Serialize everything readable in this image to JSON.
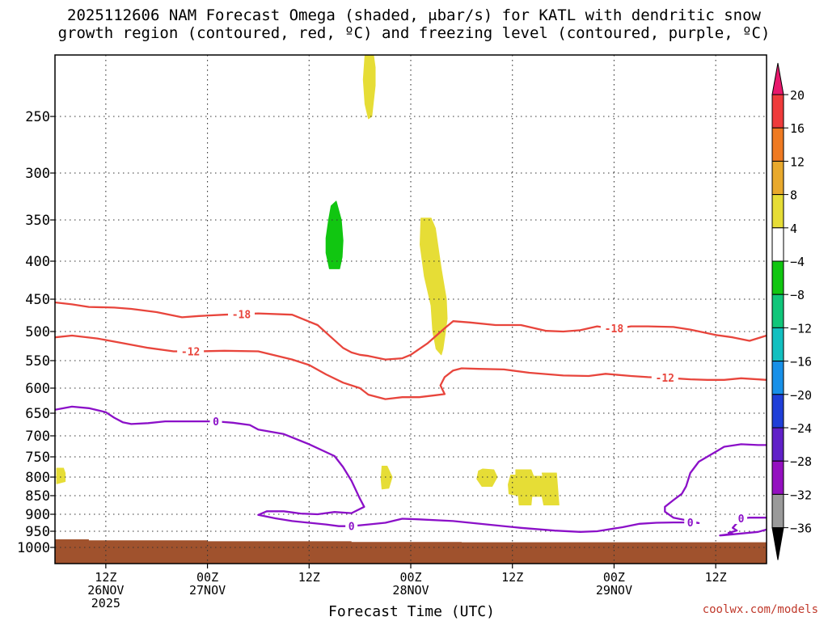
{
  "title_line1": "2025112606 NAM Forecast Omega (shaded, μbar/s) for KATL with dendritic snow",
  "title_line2": "growth region (contoured, red, ºC) and freezing level (contoured, purple, ºC)",
  "credit": "coolwx.com/models",
  "chart_data": {
    "type": "contour",
    "xlabel": "Forecast Time (UTC)",
    "ylabel": "",
    "x_unit": "forecast hour from 2025112606",
    "xlim": [
      0,
      84
    ],
    "ylim_hpa": [
      1000,
      200
    ],
    "y_ticks": [
      250,
      300,
      350,
      400,
      450,
      500,
      550,
      600,
      650,
      700,
      750,
      800,
      850,
      900,
      950,
      1000
    ],
    "x_ticks": [
      {
        "hour": 6,
        "time": "12Z",
        "date": "26NOV",
        "year": "2025"
      },
      {
        "hour": 18,
        "time": "00Z",
        "date": "27NOV",
        "year": ""
      },
      {
        "hour": 30,
        "time": "12Z",
        "date": "",
        "year": ""
      },
      {
        "hour": 42,
        "time": "00Z",
        "date": "28NOV",
        "year": ""
      },
      {
        "hour": 54,
        "time": "12Z",
        "date": "",
        "year": ""
      },
      {
        "hour": 66,
        "time": "00Z",
        "date": "29NOV",
        "year": ""
      },
      {
        "hour": 78,
        "time": "12Z",
        "date": "",
        "year": ""
      }
    ],
    "contours": [
      {
        "name": "-18",
        "color": "#e8453c",
        "label": "-18",
        "points": [
          [
            0,
            455
          ],
          [
            2,
            458
          ],
          [
            4,
            462
          ],
          [
            7,
            463
          ],
          [
            9,
            465
          ],
          [
            12,
            470
          ],
          [
            15,
            478
          ],
          [
            17,
            476
          ],
          [
            20,
            474
          ],
          [
            24,
            472
          ],
          [
            28,
            474
          ],
          [
            31,
            490
          ],
          [
            33,
            515
          ],
          [
            34,
            528
          ],
          [
            35,
            536
          ],
          [
            36,
            540
          ],
          [
            37,
            542
          ],
          [
            39,
            548
          ],
          [
            41,
            546
          ],
          [
            42,
            540
          ],
          [
            44,
            520
          ],
          [
            46,
            495
          ],
          [
            47,
            484
          ],
          [
            49,
            486
          ],
          [
            52,
            490
          ],
          [
            55,
            490
          ],
          [
            58,
            499
          ],
          [
            60,
            500
          ],
          [
            62,
            498
          ],
          [
            64,
            492
          ],
          [
            66,
            496
          ],
          [
            68,
            492
          ],
          [
            70,
            492
          ],
          [
            73,
            493
          ],
          [
            75,
            497
          ],
          [
            78,
            506
          ],
          [
            80,
            510
          ],
          [
            82,
            516
          ],
          [
            84,
            507
          ]
        ],
        "labels": [
          [
            22,
            473
          ],
          [
            66,
            495
          ]
        ]
      },
      {
        "name": "-12",
        "color": "#e8453c",
        "label": "-12",
        "points": [
          [
            0,
            510
          ],
          [
            2,
            507
          ],
          [
            5,
            512
          ],
          [
            8,
            520
          ],
          [
            11,
            528
          ],
          [
            14,
            534
          ],
          [
            17,
            534
          ],
          [
            20,
            533
          ],
          [
            24,
            534
          ],
          [
            28,
            548
          ],
          [
            30,
            558
          ],
          [
            32,
            575
          ],
          [
            34,
            590
          ],
          [
            36,
            600
          ],
          [
            37,
            613
          ],
          [
            39,
            622
          ],
          [
            41,
            618
          ],
          [
            43,
            618
          ],
          [
            45,
            614
          ],
          [
            46,
            612
          ],
          [
            45.5,
            595
          ],
          [
            46,
            580
          ],
          [
            47,
            568
          ],
          [
            48,
            564
          ],
          [
            50,
            565
          ],
          [
            53,
            566
          ],
          [
            56,
            572
          ],
          [
            60,
            577
          ],
          [
            63,
            578
          ],
          [
            65,
            574
          ],
          [
            68,
            578
          ],
          [
            70,
            580
          ],
          [
            73,
            582
          ],
          [
            75,
            584
          ],
          [
            77,
            585
          ],
          [
            79,
            585
          ],
          [
            81,
            582
          ],
          [
            84,
            585
          ]
        ],
        "labels": [
          [
            16,
            534
          ],
          [
            72,
            581
          ]
        ]
      },
      {
        "name": "0",
        "color": "#8b10c8",
        "label": "0",
        "points": [
          [
            0,
            643
          ],
          [
            2,
            637
          ],
          [
            4,
            640
          ],
          [
            6,
            648
          ],
          [
            7,
            660
          ],
          [
            8,
            670
          ],
          [
            9,
            674
          ],
          [
            11,
            672
          ],
          [
            13,
            668
          ],
          [
            15,
            668
          ],
          [
            17,
            668
          ],
          [
            19,
            668
          ],
          [
            21,
            671
          ],
          [
            23,
            676
          ],
          [
            24,
            686
          ],
          [
            27,
            696
          ],
          [
            30,
            720
          ],
          [
            33,
            748
          ],
          [
            34,
            775
          ],
          [
            35,
            810
          ],
          [
            36,
            858
          ],
          [
            36.5,
            880
          ],
          [
            35,
            897
          ],
          [
            33,
            894
          ],
          [
            31,
            900
          ],
          [
            29,
            898
          ],
          [
            28,
            895
          ],
          [
            27,
            892
          ],
          [
            25,
            892
          ],
          [
            24,
            902
          ],
          [
            26,
            912
          ],
          [
            28,
            920
          ],
          [
            30,
            925
          ],
          [
            32,
            930
          ],
          [
            33.5,
            935
          ],
          [
            35,
            935
          ],
          [
            37,
            930
          ],
          [
            39,
            925
          ],
          [
            41,
            913
          ],
          [
            43,
            915
          ],
          [
            47,
            920
          ],
          [
            51,
            930
          ],
          [
            55,
            940
          ],
          [
            59,
            948
          ],
          [
            62,
            952
          ],
          [
            64,
            950
          ],
          [
            67,
            938
          ],
          [
            69,
            928
          ],
          [
            71,
            925
          ],
          [
            73,
            924
          ],
          [
            75,
            924
          ],
          [
            76,
            926
          ],
          [
            75,
            920
          ],
          [
            73,
            910
          ],
          [
            72,
            893
          ],
          [
            72,
            880
          ],
          [
            73,
            862
          ],
          [
            74,
            845
          ],
          [
            74.5,
            825
          ],
          [
            75,
            790
          ],
          [
            76,
            762
          ],
          [
            78,
            738
          ],
          [
            79,
            726
          ],
          [
            81,
            720
          ],
          [
            83,
            722
          ],
          [
            84,
            722
          ]
        ],
        "labels": [
          [
            19,
            668
          ],
          [
            35,
            935
          ],
          [
            75,
            924
          ]
        ]
      },
      {
        "name": "0-east",
        "color": "#8b10c8",
        "label": "0",
        "points": [
          [
            84,
            945
          ],
          [
            83,
            952
          ],
          [
            81,
            957
          ],
          [
            79,
            962
          ],
          [
            78.5,
            963
          ],
          [
            80,
            958
          ],
          [
            79.5,
            955
          ],
          [
            80.5,
            948
          ],
          [
            80,
            940
          ],
          [
            81,
            912
          ],
          [
            82,
            910
          ],
          [
            84,
            910
          ]
        ],
        "labels": [
          [
            81,
            912
          ]
        ]
      }
    ],
    "shaded_regions": [
      {
        "value_range": [
          4,
          8
        ],
        "color": "#e6dd36",
        "label": "4 to 8",
        "polygon": [
          [
            36.6,
            198
          ],
          [
            37.2,
            192
          ],
          [
            37.6,
            200
          ],
          [
            37.8,
            210
          ],
          [
            37.8,
            225
          ],
          [
            37.4,
            250
          ],
          [
            37.0,
            252
          ],
          [
            36.6,
            240
          ],
          [
            36.4,
            220
          ]
        ]
      },
      {
        "value_range": [
          -8,
          -4
        ],
        "color": "#11c611",
        "label": "-8 to -4",
        "polygon": [
          [
            32.6,
            335
          ],
          [
            33.2,
            330
          ],
          [
            33.8,
            350
          ],
          [
            34.0,
            375
          ],
          [
            33.9,
            395
          ],
          [
            33.6,
            410
          ],
          [
            32.4,
            410
          ],
          [
            32.0,
            390
          ],
          [
            32.0,
            372
          ],
          [
            32.3,
            350
          ]
        ]
      },
      {
        "value_range": [
          4,
          8
        ],
        "color": "#e6dd36",
        "label": "4 to 8",
        "polygon": [
          [
            43.2,
            348
          ],
          [
            44.4,
            348
          ],
          [
            44.9,
            360
          ],
          [
            45.6,
            410
          ],
          [
            46.2,
            450
          ],
          [
            46.3,
            480
          ],
          [
            46.0,
            510
          ],
          [
            45.8,
            530
          ],
          [
            45.6,
            540
          ],
          [
            45.0,
            530
          ],
          [
            44.6,
            500
          ],
          [
            44.4,
            460
          ],
          [
            43.6,
            420
          ],
          [
            43.1,
            380
          ]
        ]
      },
      {
        "value_range": [
          4,
          8
        ],
        "color": "#e6dd36",
        "label": "4 to 8",
        "polygon": [
          [
            0.2,
            778
          ],
          [
            1.0,
            778
          ],
          [
            1.2,
            790
          ],
          [
            1.2,
            812
          ],
          [
            0.2,
            818
          ]
        ]
      },
      {
        "value_range": [
          4,
          8
        ],
        "color": "#e6dd36",
        "label": "4 to 8",
        "polygon": [
          [
            38.6,
            773
          ],
          [
            39.2,
            773
          ],
          [
            39.8,
            800
          ],
          [
            39.4,
            830
          ],
          [
            38.6,
            832
          ],
          [
            38.5,
            805
          ]
        ]
      },
      {
        "value_range": [
          4,
          8
        ],
        "color": "#e6dd36",
        "label": "4 to 8",
        "polygon": [
          [
            50.0,
            785
          ],
          [
            50.5,
            780
          ],
          [
            51.8,
            782
          ],
          [
            52.2,
            800
          ],
          [
            51.6,
            825
          ],
          [
            50.4,
            825
          ],
          [
            49.8,
            805
          ]
        ]
      },
      {
        "value_range": [
          4,
          8
        ],
        "color": "#e6dd36",
        "label": "4 to 8",
        "polygon": [
          [
            53.8,
            795
          ],
          [
            54.4,
            795
          ],
          [
            54.4,
            782
          ],
          [
            56.2,
            782
          ],
          [
            56.5,
            798
          ],
          [
            57.6,
            798
          ],
          [
            57.5,
            790
          ],
          [
            59.2,
            790
          ],
          [
            59.5,
            875
          ],
          [
            57.7,
            875
          ],
          [
            57.5,
            852
          ],
          [
            56.3,
            852
          ],
          [
            56.2,
            875
          ],
          [
            54.8,
            875
          ],
          [
            54.7,
            850
          ],
          [
            53.6,
            845
          ],
          [
            53.5,
            820
          ]
        ]
      }
    ],
    "ground": {
      "color": "#a0522d",
      "label": "below ground",
      "top_hpa": [
        [
          0,
          975
        ],
        [
          4,
          975
        ],
        [
          4,
          978
        ],
        [
          18,
          978
        ],
        [
          18,
          981
        ],
        [
          35,
          981
        ],
        [
          35,
          983
        ],
        [
          48,
          983
        ],
        [
          48,
          984
        ],
        [
          84,
          984
        ]
      ]
    },
    "colorbar": {
      "levels": [
        20,
        16,
        12,
        8,
        4,
        -4,
        -8,
        -12,
        -16,
        -20,
        -24,
        -28,
        -32,
        -36
      ],
      "colors": [
        "#e8186c",
        "#ef3b3b",
        "#ef7a22",
        "#e8a92c",
        "#e6dd36",
        "#ffffff",
        "#11c611",
        "#10c67a",
        "#12c0c0",
        "#1890e8",
        "#1f3fd8",
        "#6020c8",
        "#9410c0",
        "#9a9a9a",
        "#000000"
      ],
      "top_arrow_color": "#e8186c",
      "bottom_arrow_color": "#000000"
    }
  }
}
